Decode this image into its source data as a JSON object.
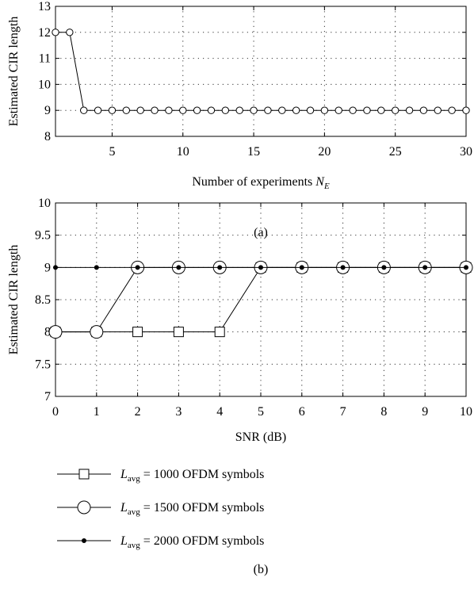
{
  "chart_data": [
    {
      "panel": "(a)",
      "type": "line",
      "xlabel": "Number of experiments N_E",
      "xlabel_main": "Number of experiments ",
      "xlabel_var": "N",
      "xlabel_sub": "E",
      "ylabel": "Estimated CIR length",
      "xlim": [
        1,
        30
      ],
      "ylim": [
        8,
        13
      ],
      "xticks": [
        "5",
        "10",
        "15",
        "20",
        "25",
        "30"
      ],
      "xtick_values": [
        5,
        10,
        15,
        20,
        25,
        30
      ],
      "yticks": [
        "8",
        "9",
        "10",
        "11",
        "12",
        "13"
      ],
      "ytick_values": [
        8,
        9,
        10,
        11,
        12,
        13
      ],
      "grid": true,
      "series": [
        {
          "marker": "circle",
          "x": [
            1,
            2,
            3,
            4,
            5,
            6,
            7,
            8,
            9,
            10,
            11,
            12,
            13,
            14,
            15,
            16,
            17,
            18,
            19,
            20,
            21,
            22,
            23,
            24,
            25,
            26,
            27,
            28,
            29,
            30
          ],
          "y": [
            12,
            12,
            9,
            9,
            9,
            9,
            9,
            9,
            9,
            9,
            9,
            9,
            9,
            9,
            9,
            9,
            9,
            9,
            9,
            9,
            9,
            9,
            9,
            9,
            9,
            9,
            9,
            9,
            9,
            9
          ]
        }
      ]
    },
    {
      "panel": "(b)",
      "type": "line",
      "xlabel": "SNR (dB)",
      "ylabel": "Estimated CIR length",
      "xlim": [
        0,
        10
      ],
      "ylim": [
        7,
        10
      ],
      "xticks": [
        "0",
        "1",
        "2",
        "3",
        "4",
        "5",
        "6",
        "7",
        "8",
        "9",
        "10"
      ],
      "xtick_values": [
        0,
        1,
        2,
        3,
        4,
        5,
        6,
        7,
        8,
        9,
        10
      ],
      "yticks": [
        "7",
        "7.5",
        "8",
        "8.5",
        "9",
        "9.5",
        "10"
      ],
      "ytick_values": [
        7,
        7.5,
        8,
        8.5,
        9,
        9.5,
        10
      ],
      "grid": true,
      "legend_position": "below",
      "series": [
        {
          "name": "L_avg = 1000 OFDM symbols",
          "legend_var": "L",
          "legend_sub": "avg",
          "legend_rest": " = 1000 OFDM symbols",
          "marker": "square",
          "x": [
            0,
            1,
            2,
            3,
            4,
            5,
            6,
            7,
            8,
            9,
            10
          ],
          "y": [
            8,
            8,
            8,
            8,
            8,
            9,
            9,
            9,
            9,
            9,
            9
          ]
        },
        {
          "name": "L_avg = 1500 OFDM symbols",
          "legend_var": "L",
          "legend_sub": "avg",
          "legend_rest": " = 1500 OFDM symbols",
          "marker": "circle",
          "x": [
            0,
            1,
            2,
            3,
            4,
            5,
            6,
            7,
            8,
            9,
            10
          ],
          "y": [
            8,
            8,
            9,
            9,
            9,
            9,
            9,
            9,
            9,
            9,
            9
          ]
        },
        {
          "name": "L_avg = 2000 OFDM symbols",
          "legend_var": "L",
          "legend_sub": "avg",
          "legend_rest": " = 2000 OFDM symbols",
          "marker": "dot",
          "x": [
            0,
            1,
            2,
            3,
            4,
            5,
            6,
            7,
            8,
            9,
            10
          ],
          "y": [
            9,
            9,
            9,
            9,
            9,
            9,
            9,
            9,
            9,
            9,
            9
          ]
        }
      ]
    }
  ]
}
